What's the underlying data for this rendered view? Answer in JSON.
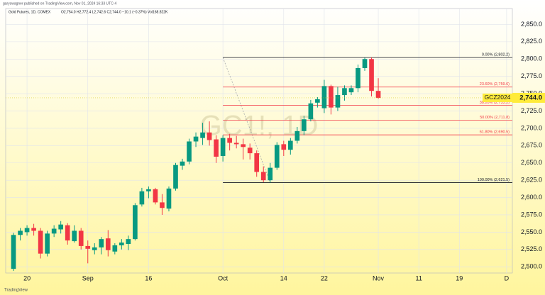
{
  "chart_data": {
    "type": "candlestick",
    "byline": "garyswagner published on TradingView.com, Nov 01, 2024 16:33 UTC-4",
    "title": "Gold Futures, 1D, COMEX",
    "ohlc_summary": "O2,754.0 H2,772.4 L2,742.6 C2,744.0 −10.1 (−0.37%) Vol168.822K",
    "watermark": "GC1!, 1D",
    "symbol_label": "GCZ2024",
    "last_price": {
      "value": 2744.0,
      "label": "2,744.0"
    },
    "footer": "TradingView",
    "up_color": "#089981",
    "down_color": "#f23645",
    "grid": true,
    "series": {
      "open": [
        2497,
        2546,
        2550,
        2556,
        2552,
        2519,
        2548,
        2554,
        2560,
        2537,
        2552,
        2530,
        2524,
        2528,
        2541,
        2522,
        2531,
        2533,
        2540,
        2590,
        2609,
        2612,
        2593,
        2584,
        2613,
        2646,
        2652,
        2681,
        2686,
        2694,
        2684,
        2660,
        2686,
        2679,
        2677,
        2672,
        2664,
        2637,
        2625,
        2643,
        2677,
        2669,
        2682,
        2696,
        2713,
        2737,
        2729,
        2761,
        2730,
        2748,
        2752,
        2758,
        2787,
        2800,
        2754
      ],
      "high": [
        2549,
        2556,
        2560,
        2562,
        2556,
        2552,
        2560,
        2566,
        2563,
        2560,
        2556,
        2538,
        2534,
        2543,
        2553,
        2534,
        2540,
        2545,
        2592,
        2614,
        2616,
        2614,
        2605,
        2616,
        2650,
        2656,
        2685,
        2694,
        2708,
        2710,
        2690,
        2690,
        2692,
        2689,
        2685,
        2678,
        2668,
        2645,
        2650,
        2680,
        2682,
        2686,
        2702,
        2718,
        2741,
        2745,
        2770,
        2763,
        2760,
        2762,
        2762,
        2792,
        2802,
        2802.2,
        2772.4
      ],
      "low": [
        2494,
        2538,
        2545,
        2545,
        2512,
        2515,
        2543,
        2548,
        2532,
        2535,
        2525,
        2505,
        2518,
        2518,
        2515,
        2518,
        2525,
        2524,
        2538,
        2587,
        2599,
        2590,
        2575,
        2580,
        2610,
        2640,
        2648,
        2673,
        2676,
        2675,
        2650,
        2652,
        2668,
        2671,
        2655,
        2655,
        2630,
        2622,
        2621.5,
        2640,
        2660,
        2662,
        2678,
        2690,
        2710,
        2730,
        2722,
        2720,
        2725,
        2740,
        2748,
        2752,
        2783,
        2746,
        2742.6
      ],
      "close": [
        2546,
        2552,
        2556,
        2552,
        2519,
        2548,
        2555,
        2561,
        2538,
        2552,
        2530,
        2526,
        2528,
        2540,
        2524,
        2531,
        2535,
        2540,
        2589,
        2609,
        2612,
        2593,
        2585,
        2613,
        2647,
        2652,
        2681,
        2688,
        2694,
        2683,
        2659,
        2686,
        2679,
        2677,
        2673,
        2664,
        2637,
        2625,
        2643,
        2676,
        2669,
        2682,
        2696,
        2713,
        2736,
        2742,
        2761,
        2730,
        2748,
        2758,
        2758,
        2787,
        2800,
        2754,
        2744.0
      ]
    },
    "fib_levels": [
      {
        "value": 2802.2,
        "label": "0.00% (2,802.2)",
        "color": "#131722"
      },
      {
        "value": 2759.6,
        "label": "23.60% (2,759.6)",
        "color": "#f23645"
      },
      {
        "value": 2733.2,
        "label": "38.20% (2,733.2)",
        "color": "#f23645"
      },
      {
        "value": 2711.8,
        "label": "50.00% (2,711.8)",
        "color": "#f23645"
      },
      {
        "value": 2690.5,
        "label": "61.80% (2,690.5)",
        "color": "#f23645"
      },
      {
        "value": 2621.5,
        "label": "100.00% (2,621.5)",
        "color": "#131722"
      }
    ],
    "xlim": [
      -1.16,
      73.85
    ],
    "xticks": [
      {
        "value": 2,
        "label": "20"
      },
      {
        "value": 11,
        "label": "Sep"
      },
      {
        "value": 20,
        "label": "16"
      },
      {
        "value": 31,
        "label": "Oct"
      },
      {
        "value": 40,
        "label": "14"
      },
      {
        "value": 46,
        "label": "22"
      },
      {
        "value": 54,
        "label": "Nov"
      },
      {
        "value": 60,
        "label": "11"
      },
      {
        "value": 66,
        "label": "19"
      },
      {
        "value": 73,
        "label": "D"
      }
    ],
    "ylim": [
      2491,
      2873
    ],
    "yticks": [
      {
        "value": 2500,
        "label": "2,500.0"
      },
      {
        "value": 2525,
        "label": "2,525.0"
      },
      {
        "value": 2550,
        "label": "2,550.0"
      },
      {
        "value": 2575,
        "label": "2,575.0"
      },
      {
        "value": 2600,
        "label": "2,600.0"
      },
      {
        "value": 2625,
        "label": "2,625.0"
      },
      {
        "value": 2650,
        "label": "2,650.0"
      },
      {
        "value": 2675,
        "label": "2,675.0"
      },
      {
        "value": 2700,
        "label": "2,700.0"
      },
      {
        "value": 2725,
        "label": "2,725.0"
      },
      {
        "value": 2750,
        "label": "2,750.0"
      },
      {
        "value": 2775,
        "label": "2,775.0"
      },
      {
        "value": 2800,
        "label": "2,800.0"
      },
      {
        "value": 2825,
        "label": "2,825.0"
      },
      {
        "value": 2850,
        "label": "2,850.0"
      }
    ]
  }
}
